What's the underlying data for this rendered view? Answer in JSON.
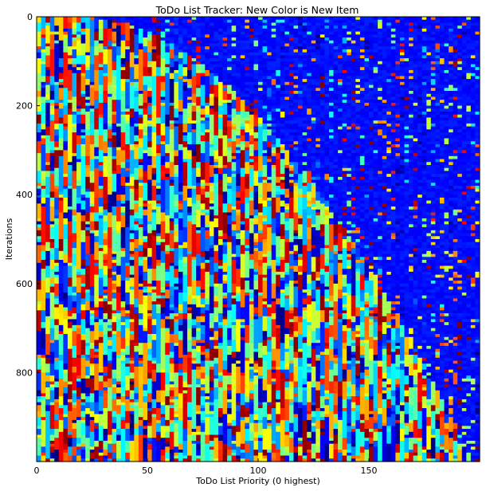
{
  "chart_data": {
    "type": "heatmap",
    "title": "ToDo List Tracker: New Color is New Item",
    "xlabel": "ToDo List Priority (0 highest)",
    "ylabel": "Iterations",
    "x_range": [
      0,
      200
    ],
    "y_range": [
      0,
      1000
    ],
    "y_inverted": true,
    "colormap": "jet",
    "x_ticks": [
      0,
      50,
      100,
      150
    ],
    "x_tick_labels": [
      "0",
      "50",
      "100",
      "150"
    ],
    "y_ticks": [
      0,
      200,
      400,
      600,
      800
    ],
    "y_tick_labels": [
      "0",
      "200",
      "400",
      "600",
      "800"
    ],
    "grid": false,
    "legend": "none"
  }
}
